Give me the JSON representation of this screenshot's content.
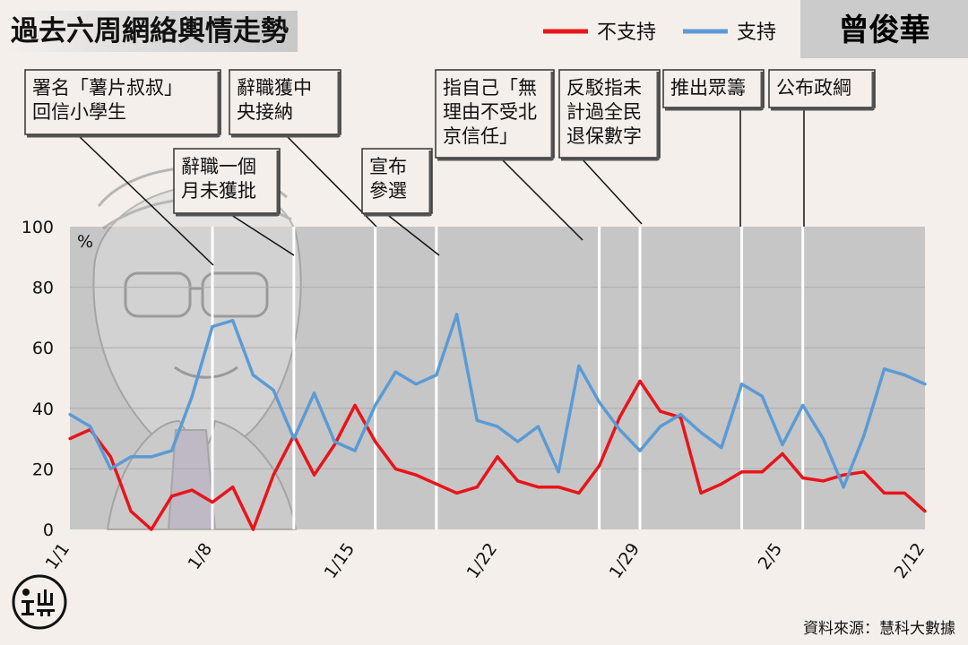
{
  "title": "過去六周網絡輿情走勢",
  "person": "曾俊華",
  "source": "資料來源：慧科大數據",
  "colors": {
    "oppose": "#e8141a",
    "support": "#5b9bd5",
    "plot_bg": "#c6c6c6",
    "grid": "#acacac",
    "marker": "#ffffff"
  },
  "chart_data": {
    "type": "line",
    "title": "過去六周網絡輿情走勢",
    "ylabel": "%",
    "ylim": [
      0,
      100
    ],
    "yticks": [
      0,
      20,
      40,
      60,
      80,
      100
    ],
    "grid": true,
    "legend_position": "top-right",
    "xlim": [
      "2017-01-01",
      "2017-02-12"
    ],
    "xticks": [
      {
        "date": "2017-01-01",
        "label": "1/1"
      },
      {
        "date": "2017-01-08",
        "label": "1/8"
      },
      {
        "date": "2017-01-15",
        "label": "1/15"
      },
      {
        "date": "2017-01-22",
        "label": "1/22"
      },
      {
        "date": "2017-01-29",
        "label": "1/29"
      },
      {
        "date": "2017-02-05",
        "label": "2/5"
      },
      {
        "date": "2017-02-12",
        "label": "2/12"
      }
    ],
    "x": [
      "2017-01-01",
      "2017-01-02",
      "2017-01-03",
      "2017-01-04",
      "2017-01-05",
      "2017-01-06",
      "2017-01-07",
      "2017-01-08",
      "2017-01-09",
      "2017-01-10",
      "2017-01-11",
      "2017-01-12",
      "2017-01-13",
      "2017-01-14",
      "2017-01-15",
      "2017-01-16",
      "2017-01-17",
      "2017-01-18",
      "2017-01-19",
      "2017-01-20",
      "2017-01-21",
      "2017-01-22",
      "2017-01-23",
      "2017-01-24",
      "2017-01-25",
      "2017-01-26",
      "2017-01-27",
      "2017-01-28",
      "2017-01-29",
      "2017-01-30",
      "2017-01-31",
      "2017-02-01",
      "2017-02-02",
      "2017-02-03",
      "2017-02-04",
      "2017-02-05",
      "2017-02-06",
      "2017-02-07",
      "2017-02-08",
      "2017-02-09",
      "2017-02-10",
      "2017-02-11",
      "2017-02-12"
    ],
    "series": [
      {
        "name": "不支持",
        "color": "#e8141a",
        "values": [
          30,
          33,
          24,
          6,
          0,
          11,
          13,
          9,
          14,
          0,
          18,
          31,
          18,
          28,
          41,
          29,
          20,
          18,
          15,
          12,
          14,
          24,
          16,
          14,
          14,
          12,
          21,
          37,
          49,
          39,
          37,
          12,
          15,
          19,
          19,
          25,
          17,
          16,
          18,
          19,
          12,
          12,
          6
        ]
      },
      {
        "name": "支持",
        "color": "#5b9bd5",
        "values": [
          38,
          34,
          20,
          24,
          24,
          26,
          44,
          67,
          69,
          51,
          46,
          30,
          45,
          29,
          26,
          41,
          52,
          48,
          51,
          71,
          36,
          34,
          29,
          34,
          19,
          54,
          42,
          33,
          26,
          34,
          38,
          32,
          27,
          48,
          44,
          28,
          41,
          30,
          14,
          31,
          53,
          51,
          48
        ]
      }
    ],
    "events": [
      {
        "date": "2017-01-08",
        "label": [
          "署名「薯片叔叔」",
          "回信小學生"
        ]
      },
      {
        "date": "2017-01-13",
        "label": [
          "辭職獲中",
          "央接納"
        ]
      },
      {
        "date": "2017-01-10",
        "label": [
          "辭職一個",
          "月未獲批"
        ]
      },
      {
        "date": "2017-01-19",
        "label": [
          "宣布",
          "參選"
        ]
      },
      {
        "date": "2017-01-27",
        "label": [
          "指自己「無",
          "理由不受北",
          "京信任」"
        ]
      },
      {
        "date": "2017-01-29",
        "label": [
          "反駁指未",
          "計過全民",
          "退保數字"
        ]
      },
      {
        "date": "2017-02-03",
        "label": [
          "推出眾籌"
        ]
      },
      {
        "date": "2017-02-06",
        "label": [
          "公布政綱"
        ]
      }
    ],
    "event_markers": [
      "2017-01-08",
      "2017-01-12",
      "2017-01-16",
      "2017-01-19",
      "2017-01-27",
      "2017-01-29",
      "2017-02-03",
      "2017-02-06"
    ]
  }
}
